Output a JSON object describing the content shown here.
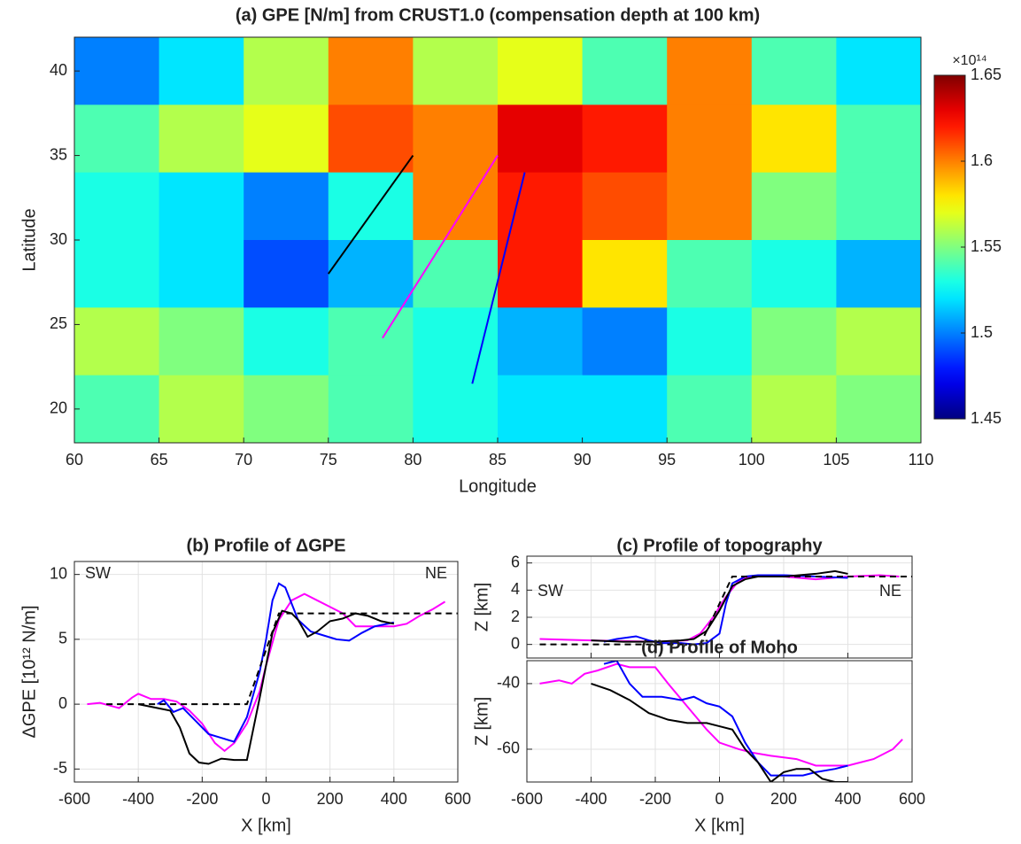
{
  "chart_data": [
    {
      "type": "heatmap",
      "title": "(a) GPE [N/m] from CRUST1.0 (compensation depth at 100 km)",
      "xlabel": "Longitude",
      "ylabel": "Latitude",
      "xlim": [
        60,
        110
      ],
      "ylim": [
        18,
        42
      ],
      "xticks": [
        60,
        65,
        70,
        75,
        80,
        85,
        90,
        95,
        100,
        105,
        110
      ],
      "yticks": [
        20,
        25,
        30,
        35,
        40
      ],
      "x_edges": [
        60,
        65,
        70,
        75,
        80,
        85,
        90,
        95,
        100,
        105,
        110
      ],
      "y_edges": [
        42,
        38,
        34,
        30,
        26,
        22,
        18
      ],
      "z": [
        [
          1.5,
          1.52,
          1.56,
          1.6,
          1.56,
          1.57,
          1.54,
          1.6,
          1.54,
          1.52
        ],
        [
          1.54,
          1.56,
          1.57,
          1.61,
          1.6,
          1.63,
          1.62,
          1.6,
          1.58,
          1.54
        ],
        [
          1.53,
          1.52,
          1.5,
          1.53,
          1.6,
          1.62,
          1.61,
          1.6,
          1.55,
          1.54
        ],
        [
          1.53,
          1.52,
          1.49,
          1.51,
          1.54,
          1.62,
          1.58,
          1.54,
          1.53,
          1.51
        ],
        [
          1.56,
          1.55,
          1.53,
          1.54,
          1.53,
          1.51,
          1.5,
          1.53,
          1.55,
          1.56
        ],
        [
          1.54,
          1.56,
          1.55,
          1.54,
          1.53,
          1.52,
          1.52,
          1.54,
          1.56,
          1.55
        ]
      ],
      "colormap": "jet",
      "clim": [
        1.45,
        1.65
      ],
      "colorbar_ticks": [
        1.45,
        1.5,
        1.55,
        1.6,
        1.65
      ],
      "colorbar_label": "×10¹⁴",
      "series": [
        {
          "color": "#000000",
          "x": [
            75,
            80
          ],
          "values": [
            28,
            35
          ]
        },
        {
          "color": "#ff00ff",
          "x": [
            78.2,
            85
          ],
          "values": [
            24.2,
            35
          ]
        },
        {
          "color": "#0000ff",
          "x": [
            83.5,
            86.6
          ],
          "values": [
            21.5,
            34
          ]
        }
      ]
    },
    {
      "type": "line",
      "title": "(b) Profile of ΔGPE",
      "xlabel": "X [km]",
      "ylabel": "ΔGPE [10¹² N/m]",
      "xlim": [
        -600,
        600
      ],
      "ylim": [
        -6,
        11
      ],
      "xticks": [
        -600,
        -400,
        -200,
        0,
        200,
        400,
        600
      ],
      "yticks": [
        -5,
        0,
        5,
        10
      ],
      "grid": true,
      "annotations": [
        "SW",
        "NE"
      ],
      "series": [
        {
          "color": "#ff00ff",
          "x": [
            -560,
            -520,
            -460,
            -420,
            -400,
            -360,
            -320,
            -280,
            -240,
            -200,
            -160,
            -130,
            -100,
            -60,
            -20,
            0,
            40,
            80,
            120,
            160,
            200,
            240,
            280,
            320,
            360,
            400,
            440,
            480,
            520,
            560
          ],
          "values": [
            0,
            0.1,
            -0.3,
            0.5,
            0.8,
            0.4,
            0.4,
            0.2,
            -0.5,
            -1.5,
            -3,
            -3.6,
            -3,
            -1.5,
            1,
            3,
            6.5,
            8,
            8.5,
            8,
            7.5,
            7,
            6,
            6,
            6,
            6,
            6.2,
            6.8,
            7.3,
            7.9
          ]
        },
        {
          "color": "#0000ff",
          "x": [
            -340,
            -320,
            -290,
            -260,
            -220,
            -180,
            -140,
            -100,
            -60,
            -20,
            0,
            20,
            40,
            60,
            100,
            140,
            180,
            220,
            260,
            300,
            340,
            400
          ],
          "values": [
            0,
            0.3,
            -0.6,
            -0.3,
            -1.3,
            -2.3,
            -2.6,
            -2.9,
            -1,
            2.5,
            5,
            8,
            9.3,
            9,
            6.5,
            5.6,
            5.3,
            5,
            4.9,
            5.5,
            6,
            6.3
          ]
        },
        {
          "color": "#000000",
          "x": [
            -400,
            -340,
            -300,
            -270,
            -240,
            -210,
            -180,
            -140,
            -100,
            -60,
            -20,
            20,
            50,
            80,
            100,
            130,
            160,
            200,
            240,
            280,
            320,
            360,
            400
          ],
          "values": [
            0,
            -0.3,
            -0.5,
            -1.8,
            -3.8,
            -4.5,
            -4.6,
            -4.2,
            -4.3,
            -4.3,
            0.5,
            5.5,
            7.2,
            7,
            6.5,
            5.2,
            5.6,
            6.4,
            6.6,
            7,
            6.8,
            6.4,
            6.2
          ]
        },
        {
          "color": "#000000",
          "dash": true,
          "x": [
            -500,
            -60,
            40,
            600
          ],
          "values": [
            0,
            0,
            7,
            7
          ]
        }
      ]
    },
    {
      "type": "line",
      "title": "(c) Profile of topography",
      "ylabel": "Z [km]",
      "xlim": [
        -600,
        600
      ],
      "ylim": [
        -1,
        6.5
      ],
      "xticks": [
        -600,
        -400,
        -200,
        0,
        200,
        400,
        600
      ],
      "yticks": [
        0,
        2,
        4,
        6
      ],
      "show_xtick_labels": false,
      "grid": true,
      "annotations": [
        "SW",
        "NE"
      ],
      "series": [
        {
          "color": "#ff00ff",
          "x": [
            -560,
            -400,
            -200,
            -100,
            -60,
            -20,
            20,
            60,
            100,
            200,
            300,
            400,
            500,
            560
          ],
          "values": [
            0.4,
            0.3,
            0.2,
            0.3,
            0.8,
            2,
            3.5,
            4.7,
            5,
            5,
            4.8,
            5,
            5.1,
            5
          ]
        },
        {
          "color": "#0000ff",
          "x": [
            -360,
            -320,
            -260,
            -220,
            -180,
            -120,
            -80,
            -40,
            0,
            20,
            40,
            80,
            120,
            200,
            300,
            400
          ],
          "values": [
            0.2,
            0.4,
            0.6,
            0.3,
            0.1,
            0.1,
            0,
            0.1,
            0.8,
            3,
            4.5,
            5,
            5.1,
            5.1,
            5,
            4.9
          ]
        },
        {
          "color": "#000000",
          "x": [
            -400,
            -300,
            -200,
            -120,
            -80,
            -40,
            0,
            40,
            80,
            120,
            200,
            300,
            360,
            400
          ],
          "values": [
            0.3,
            0.2,
            0.2,
            0.3,
            0.4,
            1,
            2.5,
            4.3,
            4.8,
            5,
            5,
            5.2,
            5.4,
            5.2
          ]
        },
        {
          "color": "#000000",
          "dash": true,
          "x": [
            -560,
            -60,
            40,
            600
          ],
          "values": [
            0,
            0,
            5,
            5
          ]
        }
      ]
    },
    {
      "type": "line",
      "title": "(d) Profile of Moho",
      "xlabel": "X [km]",
      "ylabel": "Z [km]",
      "xlim": [
        -600,
        600
      ],
      "ylim": [
        -70,
        -33
      ],
      "xticks": [
        -600,
        -400,
        -200,
        0,
        200,
        400,
        600
      ],
      "yticks": [
        -60,
        -40
      ],
      "grid": true,
      "series": [
        {
          "color": "#ff00ff",
          "x": [
            -560,
            -500,
            -460,
            -420,
            -380,
            -320,
            -280,
            -200,
            -160,
            -100,
            -40,
            0,
            60,
            100,
            160,
            240,
            300,
            400,
            480,
            540,
            570
          ],
          "values": [
            -40,
            -39,
            -40,
            -37,
            -36,
            -34,
            -35,
            -35,
            -40,
            -47,
            -54,
            -58,
            -60,
            -61,
            -62,
            -63,
            -65,
            -65,
            -63,
            -60,
            -57
          ]
        },
        {
          "color": "#0000ff",
          "x": [
            -360,
            -320,
            -280,
            -240,
            -180,
            -120,
            -80,
            -40,
            0,
            40,
            80,
            120,
            160,
            220,
            260,
            300,
            360,
            400
          ],
          "values": [
            -34,
            -33,
            -40,
            -44,
            -44,
            -45,
            -44,
            -46,
            -47,
            -50,
            -58,
            -64,
            -68,
            -68,
            -68,
            -67,
            -66,
            -65
          ]
        },
        {
          "color": "#000000",
          "x": [
            -400,
            -340,
            -280,
            -220,
            -160,
            -100,
            -40,
            0,
            40,
            80,
            120,
            160,
            200,
            240,
            280,
            320,
            360,
            400
          ],
          "values": [
            -40,
            -42,
            -45,
            -49,
            -51,
            -52,
            -52,
            -53,
            -54,
            -60,
            -64,
            -70,
            -67,
            -66,
            -66,
            -69,
            -70,
            -70
          ]
        }
      ]
    }
  ]
}
